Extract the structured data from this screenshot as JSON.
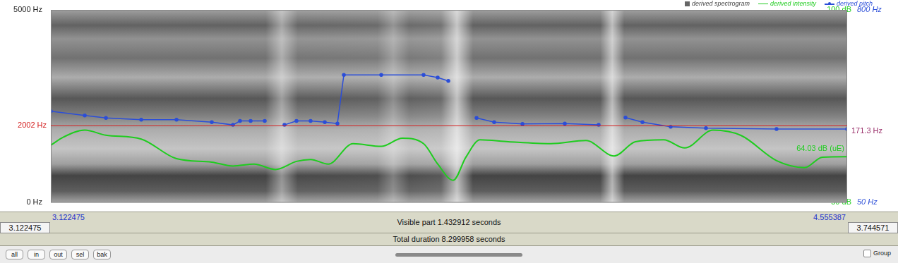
{
  "chart_data": {
    "type": "line",
    "legend": "top right",
    "grid": false,
    "tick_labels": "y",
    "log": "y2",
    "xlim": [
      3.122475,
      4.555387
    ],
    "ylim": [
      0,
      5000
    ],
    "yticks": [
      {
        "value": 0,
        "label": "0 Hz"
      },
      {
        "value": 5000,
        "label": "5000 Hz"
      }
    ],
    "y2lim": [
      50,
      800
    ],
    "y2ticks": [
      {
        "value": 50,
        "label": "50 Hz"
      },
      {
        "value": 800,
        "label": "800 Hz"
      }
    ],
    "y3lim": [
      50,
      100
    ],
    "y3ticks": [
      {
        "value": 50,
        "label": "50 dB"
      },
      {
        "value": 100,
        "label": "100 dB"
      }
    ],
    "series": [
      {
        "name": "derived pitch",
        "color": "#2b4ed8",
        "axis": "y2",
        "marker": "circle",
        "x": [
          3.1225,
          3.1835,
          3.2216,
          3.2851,
          3.3486,
          3.4121,
          3.4502,
          3.4629,
          3.482,
          3.5074,
          3.52,
          3.5429,
          3.5645,
          3.5899,
          3.6154,
          3.6382,
          3.6497,
          3.717,
          3.7932,
          3.8186,
          3.8377,
          3.86,
          3.8885,
          3.9202,
          3.9711,
          4.0473,
          4.1082,
          4.13,
          4.1565,
          4.187,
          4.2378,
          4.3013,
          4.4283,
          4.5553
        ],
        "values": [
          186,
          175,
          169,
          165,
          165,
          159,
          153,
          162,
          162,
          162,
          null,
          153,
          162,
          162,
          159,
          156,
          314,
          314,
          314,
          302,
          288,
          null,
          169,
          159,
          155,
          156,
          153,
          null,
          170,
          159,
          149,
          146,
          144,
          144
        ]
      },
      {
        "name": "derived intensity",
        "color": "#1fcc1f",
        "axis": "y3",
        "marker": "none",
        "x": [
          3.1225,
          3.1453,
          3.1835,
          3.2216,
          3.2851,
          3.3486,
          3.4121,
          3.4502,
          3.4883,
          3.5264,
          3.5645,
          3.5899,
          3.6217,
          3.6662,
          3.717,
          3.7551,
          3.7932,
          3.8186,
          3.8465,
          3.8694,
          3.8948,
          3.9456,
          4.0219,
          4.0854,
          4.1362,
          4.1743,
          4.2251,
          4.2632,
          4.314,
          4.3648,
          4.4283,
          4.4791,
          4.5109,
          4.5553
        ],
        "values": [
          64.9,
          67.0,
          68.8,
          67.5,
          66.5,
          61.4,
          60.5,
          59.5,
          60.0,
          58.6,
          60.7,
          61.2,
          60.0,
          65.3,
          64.6,
          66.7,
          65.3,
          60.0,
          55.8,
          61.8,
          66.3,
          65.8,
          65.3,
          66.1,
          62.1,
          65.8,
          66.3,
          64.2,
          68.8,
          67.4,
          60.9,
          59.1,
          61.8,
          61.9
        ]
      }
    ],
    "annotations": {
      "spectrogram_label": "derived spectrogram",
      "spectrogram_cursor": {
        "value": 2002,
        "label": "2002 Hz",
        "color": "#d42020"
      },
      "pitch_cursor": {
        "value": 171.3,
        "label": "171.3 Hz",
        "color": "#9a2f6a"
      },
      "intensity_cursor": {
        "value": 64.03,
        "label": "64.03 dB (uE)",
        "color": "#1fcc1f"
      }
    }
  },
  "time_bar": {
    "window_start": "3.122475",
    "visible_start": "3.122475",
    "visible_part": "Visible part 1.432912 seconds",
    "visible_end": "4.555387",
    "window_end": "3.744571",
    "total_duration": "Total duration 8.299958 seconds"
  },
  "controls": {
    "buttons": [
      "all",
      "in",
      "out",
      "sel",
      "bak"
    ],
    "checkbox": "Group"
  }
}
